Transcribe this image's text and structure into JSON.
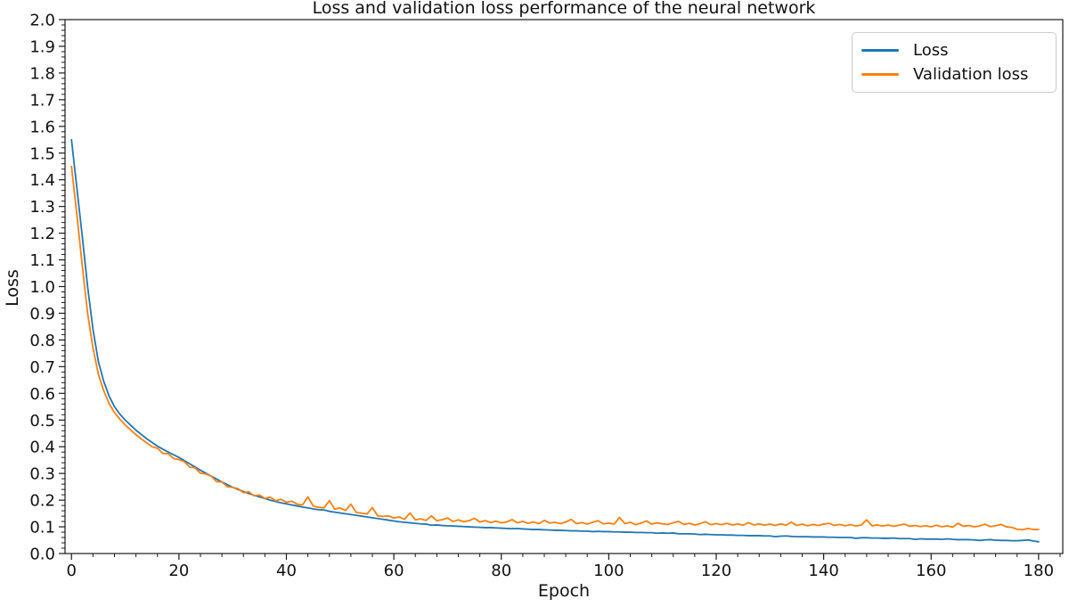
{
  "chart_data": {
    "type": "line",
    "title": "Loss and validation loss performance of the neural network",
    "xlabel": "Epoch",
    "ylabel": "Loss",
    "xlim": [
      -1.2,
      184.5
    ],
    "ylim": [
      0.0,
      2.0
    ],
    "x_ticks": [
      0,
      20,
      40,
      60,
      80,
      100,
      120,
      140,
      160,
      180
    ],
    "y_ticks": [
      0.0,
      0.1,
      0.2,
      0.3,
      0.4,
      0.5,
      0.6,
      0.7,
      0.8,
      0.9,
      1.0,
      1.1,
      1.2,
      1.3,
      1.4,
      1.5,
      1.6,
      1.7,
      1.8,
      1.9,
      2.0
    ],
    "minor_x_step": 4,
    "minor_y_step": 0.02,
    "grid": false,
    "legend_position": "upper right",
    "x_start": 0,
    "x_step": 1,
    "axis_color": "#1a1a1a",
    "series": [
      {
        "name": "Loss",
        "color": "#1f77b4",
        "values": [
          1.55,
          1.37,
          1.19,
          1.0,
          0.84,
          0.72,
          0.645,
          0.59,
          0.55,
          0.522,
          0.5,
          0.481,
          0.462,
          0.446,
          0.43,
          0.416,
          0.402,
          0.391,
          0.38,
          0.37,
          0.36,
          0.348,
          0.336,
          0.324,
          0.312,
          0.301,
          0.29,
          0.279,
          0.268,
          0.258,
          0.248,
          0.24,
          0.232,
          0.225,
          0.218,
          0.212,
          0.206,
          0.2,
          0.195,
          0.19,
          0.186,
          0.182,
          0.178,
          0.174,
          0.171,
          0.167,
          0.164,
          0.163,
          0.158,
          0.155,
          0.152,
          0.149,
          0.146,
          0.143,
          0.14,
          0.137,
          0.134,
          0.131,
          0.128,
          0.125,
          0.122,
          0.119,
          0.117,
          0.115,
          0.113,
          0.111,
          0.11,
          0.106,
          0.107,
          0.105,
          0.104,
          0.103,
          0.102,
          0.101,
          0.1,
          0.099,
          0.098,
          0.097,
          0.097,
          0.096,
          0.095,
          0.094,
          0.093,
          0.094,
          0.092,
          0.091,
          0.09,
          0.09,
          0.089,
          0.088,
          0.087,
          0.087,
          0.086,
          0.085,
          0.085,
          0.084,
          0.084,
          0.082,
          0.083,
          0.082,
          0.082,
          0.081,
          0.081,
          0.08,
          0.08,
          0.079,
          0.079,
          0.078,
          0.078,
          0.076,
          0.077,
          0.076,
          0.077,
          0.074,
          0.074,
          0.074,
          0.073,
          0.071,
          0.072,
          0.071,
          0.07,
          0.07,
          0.069,
          0.069,
          0.068,
          0.068,
          0.067,
          0.067,
          0.067,
          0.066,
          0.066,
          0.063,
          0.065,
          0.066,
          0.064,
          0.063,
          0.063,
          0.063,
          0.062,
          0.062,
          0.062,
          0.061,
          0.061,
          0.06,
          0.06,
          0.06,
          0.057,
          0.059,
          0.059,
          0.058,
          0.058,
          0.057,
          0.057,
          0.058,
          0.056,
          0.056,
          0.056,
          0.053,
          0.055,
          0.054,
          0.054,
          0.054,
          0.053,
          0.055,
          0.053,
          0.052,
          0.052,
          0.052,
          0.051,
          0.049,
          0.051,
          0.052,
          0.05,
          0.049,
          0.049,
          0.048,
          0.048,
          0.049,
          0.051,
          0.047,
          0.044
        ]
      },
      {
        "name": "Validation loss",
        "color": "#ff7f0e",
        "values": [
          1.45,
          1.27,
          1.08,
          0.9,
          0.77,
          0.672,
          0.61,
          0.562,
          0.528,
          0.503,
          0.482,
          0.463,
          0.445,
          0.429,
          0.415,
          0.4,
          0.394,
          0.375,
          0.374,
          0.356,
          0.352,
          0.344,
          0.324,
          0.321,
          0.301,
          0.298,
          0.29,
          0.269,
          0.268,
          0.25,
          0.248,
          0.243,
          0.228,
          0.231,
          0.216,
          0.219,
          0.206,
          0.211,
          0.198,
          0.203,
          0.192,
          0.196,
          0.185,
          0.182,
          0.212,
          0.178,
          0.173,
          0.171,
          0.198,
          0.166,
          0.171,
          0.161,
          0.185,
          0.154,
          0.151,
          0.148,
          0.172,
          0.141,
          0.139,
          0.141,
          0.133,
          0.137,
          0.128,
          0.152,
          0.126,
          0.13,
          0.124,
          0.141,
          0.123,
          0.127,
          0.133,
          0.12,
          0.126,
          0.119,
          0.123,
          0.132,
          0.118,
          0.123,
          0.116,
          0.121,
          0.115,
          0.118,
          0.127,
          0.115,
          0.12,
          0.113,
          0.118,
          0.112,
          0.124,
          0.114,
          0.117,
          0.112,
          0.118,
          0.128,
          0.112,
          0.116,
          0.11,
          0.117,
          0.123,
          0.111,
          0.114,
          0.11,
          0.135,
          0.112,
          0.117,
          0.108,
          0.114,
          0.122,
          0.11,
          0.115,
          0.111,
          0.109,
          0.115,
          0.12,
          0.109,
          0.113,
          0.107,
          0.112,
          0.119,
          0.108,
          0.112,
          0.108,
          0.113,
          0.107,
          0.111,
          0.106,
          0.116,
          0.107,
          0.111,
          0.106,
          0.11,
          0.105,
          0.111,
          0.106,
          0.117,
          0.105,
          0.11,
          0.104,
          0.109,
          0.105,
          0.11,
          0.113,
          0.105,
          0.109,
          0.104,
          0.108,
          0.103,
          0.107,
          0.126,
          0.104,
          0.107,
          0.103,
          0.107,
          0.102,
          0.106,
          0.11,
          0.102,
          0.105,
          0.101,
          0.104,
          0.1,
          0.106,
          0.1,
          0.104,
          0.099,
          0.113,
          0.102,
          0.105,
          0.1,
          0.103,
          0.11,
          0.101,
          0.104,
          0.109,
          0.1,
          0.098,
          0.091,
          0.089,
          0.094,
          0.09,
          0.09
        ]
      }
    ]
  }
}
